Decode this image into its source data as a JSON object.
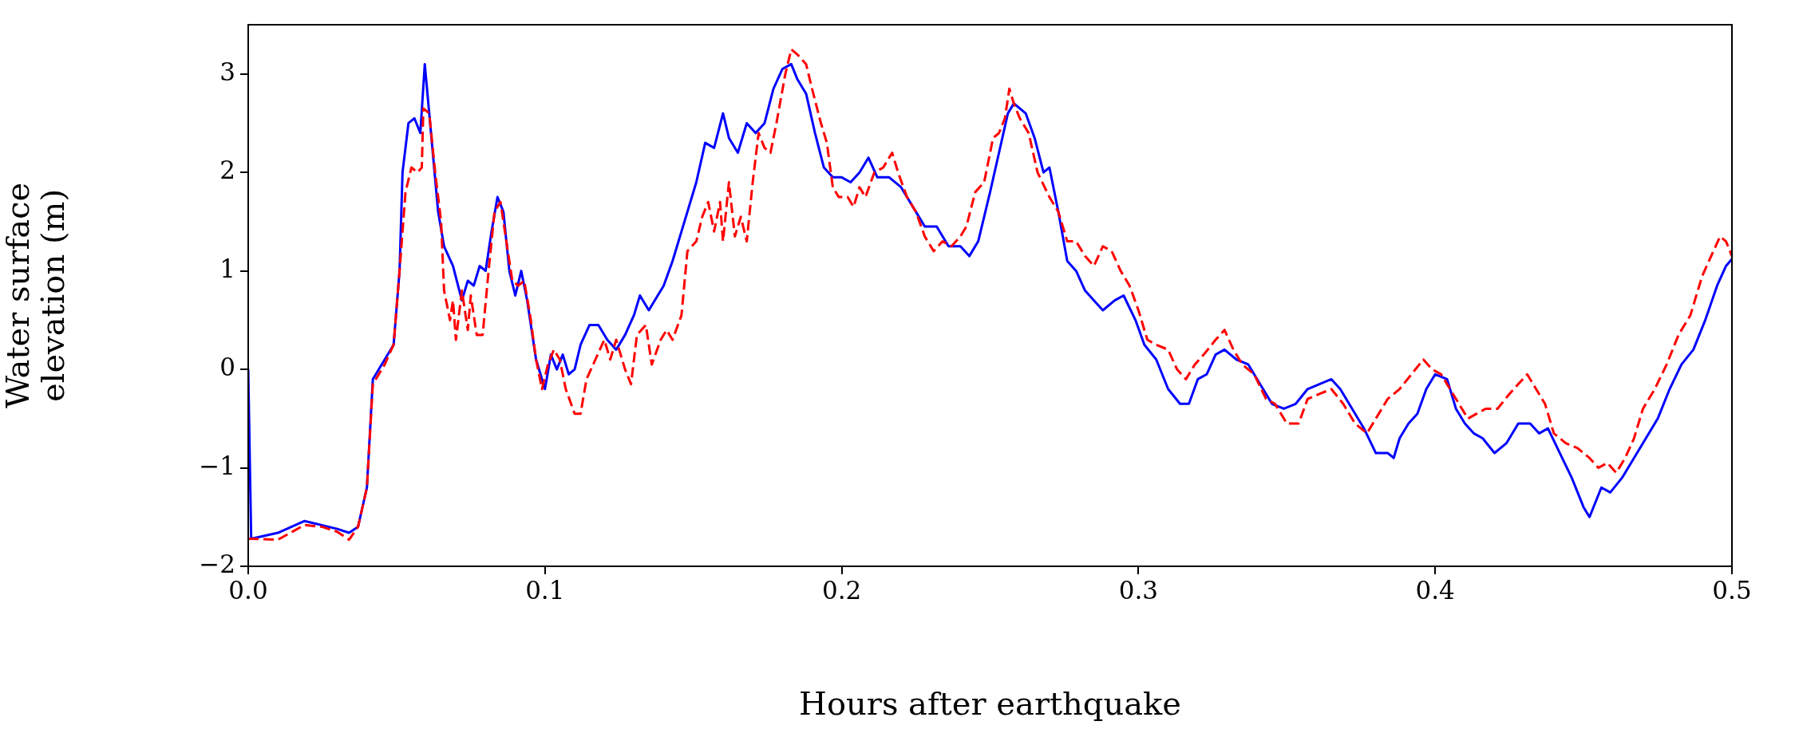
{
  "chart_data": {
    "type": "line",
    "xlabel": "Hours after earthquake",
    "ylabel": "Water surface elevation (m)",
    "xlim": [
      0,
      0.5
    ],
    "ylim": [
      -2,
      3.5
    ],
    "xticks": [
      {
        "value": 0,
        "label": "0.0"
      },
      0.1,
      0.2,
      0.3,
      0.4,
      0.5
    ],
    "yticks": [
      {
        "value": -2,
        "label": "−2"
      },
      {
        "value": -1,
        "label": "−1"
      },
      0,
      1,
      2,
      3
    ],
    "series": [
      {
        "color": "#0000ff",
        "line_style": "solid",
        "x": [
          0,
          0.001,
          0.01,
          0.019,
          0.03,
          0.034,
          0.037,
          0.04,
          0.042,
          0.046,
          0.049,
          0.051,
          0.052,
          0.054,
          0.056,
          0.058,
          0.0595,
          0.061,
          0.064,
          0.066,
          0.069,
          0.072,
          0.074,
          0.076,
          0.078,
          0.08,
          0.082,
          0.084,
          0.086,
          0.088,
          0.09,
          0.092,
          0.094,
          0.097,
          0.1,
          0.102,
          0.104,
          0.106,
          0.108,
          0.11,
          0.112,
          0.115,
          0.118,
          0.121,
          0.124,
          0.127,
          0.13,
          0.132,
          0.135,
          0.138,
          0.14,
          0.143,
          0.147,
          0.151,
          0.154,
          0.157,
          0.16,
          0.162,
          0.165,
          0.168,
          0.171,
          0.174,
          0.177,
          0.18,
          0.183,
          0.185,
          0.188,
          0.191,
          0.194,
          0.197,
          0.2,
          0.203,
          0.206,
          0.209,
          0.212,
          0.216,
          0.22,
          0.224,
          0.228,
          0.232,
          0.236,
          0.24,
          0.243,
          0.246,
          0.25,
          0.253,
          0.256,
          0.258,
          0.262,
          0.265,
          0.268,
          0.27,
          0.273,
          0.276,
          0.279,
          0.282,
          0.285,
          0.288,
          0.292,
          0.295,
          0.299,
          0.302,
          0.306,
          0.31,
          0.314,
          0.317,
          0.32,
          0.323,
          0.326,
          0.329,
          0.333,
          0.337,
          0.34,
          0.345,
          0.349,
          0.353,
          0.357,
          0.361,
          0.365,
          0.368,
          0.372,
          0.376,
          0.38,
          0.384,
          0.386,
          0.388,
          0.391,
          0.394,
          0.397,
          0.4,
          0.404,
          0.407,
          0.41,
          0.413,
          0.416,
          0.42,
          0.424,
          0.428,
          0.432,
          0.435,
          0.438,
          0.442,
          0.446,
          0.45,
          0.452,
          0.456,
          0.459,
          0.463,
          0.467,
          0.471,
          0.475,
          0.479,
          0.483,
          0.487,
          0.491,
          0.495,
          0.498,
          0.5
        ],
        "values": [
          0,
          -1.72,
          -1.66,
          -1.54,
          -1.62,
          -1.66,
          -1.6,
          -1.2,
          -0.1,
          0.1,
          0.25,
          1.0,
          2.0,
          2.5,
          2.55,
          2.4,
          3.1,
          2.6,
          1.6,
          1.25,
          1.05,
          0.7,
          0.9,
          0.85,
          1.05,
          1.0,
          1.4,
          1.75,
          1.6,
          1.0,
          0.75,
          1.0,
          0.7,
          0.1,
          -0.2,
          0.15,
          0.0,
          0.15,
          -0.05,
          0.0,
          0.25,
          0.45,
          0.45,
          0.3,
          0.2,
          0.35,
          0.55,
          0.75,
          0.6,
          0.75,
          0.85,
          1.1,
          1.5,
          1.9,
          2.3,
          2.25,
          2.6,
          2.35,
          2.2,
          2.5,
          2.4,
          2.5,
          2.85,
          3.05,
          3.1,
          2.95,
          2.8,
          2.4,
          2.05,
          1.95,
          1.95,
          1.9,
          2.0,
          2.15,
          1.95,
          1.95,
          1.85,
          1.65,
          1.45,
          1.45,
          1.25,
          1.25,
          1.15,
          1.3,
          1.8,
          2.2,
          2.6,
          2.7,
          2.6,
          2.35,
          2.0,
          2.05,
          1.6,
          1.1,
          1.0,
          0.8,
          0.7,
          0.6,
          0.7,
          0.75,
          0.5,
          0.25,
          0.1,
          -0.2,
          -0.35,
          -0.35,
          -0.1,
          -0.05,
          0.15,
          0.2,
          0.1,
          0.05,
          -0.1,
          -0.35,
          -0.4,
          -0.35,
          -0.2,
          -0.15,
          -0.1,
          -0.2,
          -0.4,
          -0.6,
          -0.85,
          -0.85,
          -0.9,
          -0.7,
          -0.55,
          -0.45,
          -0.2,
          -0.05,
          -0.1,
          -0.4,
          -0.55,
          -0.65,
          -0.7,
          -0.85,
          -0.75,
          -0.55,
          -0.55,
          -0.65,
          -0.6,
          -0.85,
          -1.1,
          -1.4,
          -1.5,
          -1.2,
          -1.25,
          -1.1,
          -0.9,
          -0.7,
          -0.5,
          -0.2,
          0.05,
          0.2,
          0.5,
          0.85,
          1.05,
          1.12
        ]
      },
      {
        "color": "#ff0000",
        "line_style": "dashed",
        "x": [
          0,
          0.01,
          0.019,
          0.025,
          0.03,
          0.034,
          0.037,
          0.04,
          0.042,
          0.046,
          0.049,
          0.051,
          0.053,
          0.055,
          0.057,
          0.0585,
          0.059,
          0.061,
          0.063,
          0.065,
          0.066,
          0.068,
          0.069,
          0.07,
          0.072,
          0.074,
          0.075,
          0.077,
          0.079,
          0.081,
          0.083,
          0.085,
          0.087,
          0.089,
          0.091,
          0.093,
          0.095,
          0.097,
          0.099,
          0.101,
          0.103,
          0.105,
          0.107,
          0.11,
          0.112,
          0.114,
          0.117,
          0.12,
          0.122,
          0.124,
          0.127,
          0.129,
          0.131,
          0.134,
          0.136,
          0.139,
          0.141,
          0.143,
          0.146,
          0.148,
          0.151,
          0.153,
          0.155,
          0.157,
          0.159,
          0.16,
          0.162,
          0.164,
          0.166,
          0.168,
          0.17,
          0.172,
          0.174,
          0.176,
          0.178,
          0.181,
          0.183,
          0.185,
          0.188,
          0.19,
          0.193,
          0.195,
          0.197,
          0.199,
          0.202,
          0.204,
          0.206,
          0.208,
          0.211,
          0.214,
          0.217,
          0.219,
          0.222,
          0.225,
          0.228,
          0.231,
          0.234,
          0.237,
          0.24,
          0.242,
          0.245,
          0.248,
          0.251,
          0.253,
          0.255,
          0.2565,
          0.258,
          0.26,
          0.263,
          0.266,
          0.27,
          0.273,
          0.276,
          0.279,
          0.282,
          0.285,
          0.288,
          0.291,
          0.294,
          0.297,
          0.3,
          0.303,
          0.306,
          0.31,
          0.313,
          0.316,
          0.319,
          0.322,
          0.326,
          0.329,
          0.332,
          0.335,
          0.339,
          0.343,
          0.346,
          0.35,
          0.354,
          0.357,
          0.361,
          0.365,
          0.369,
          0.373,
          0.377,
          0.38,
          0.384,
          0.388,
          0.392,
          0.396,
          0.399,
          0.402,
          0.405,
          0.408,
          0.411,
          0.414,
          0.417,
          0.421,
          0.425,
          0.428,
          0.431,
          0.434,
          0.437,
          0.44,
          0.444,
          0.448,
          0.452,
          0.455,
          0.458,
          0.461,
          0.464,
          0.467,
          0.47,
          0.474,
          0.478,
          0.482,
          0.486,
          0.49,
          0.493,
          0.496,
          0.498,
          0.5
        ],
        "values": [
          -1.72,
          -1.73,
          -1.58,
          -1.6,
          -1.65,
          -1.73,
          -1.6,
          -1.2,
          -0.15,
          0.05,
          0.25,
          1.0,
          1.8,
          2.05,
          2.0,
          2.05,
          2.65,
          2.6,
          2.0,
          1.5,
          0.8,
          0.5,
          0.7,
          0.3,
          0.8,
          0.4,
          0.75,
          0.35,
          0.35,
          1.0,
          1.6,
          1.7,
          1.3,
          0.9,
          0.85,
          0.9,
          0.55,
          0.1,
          -0.2,
          0.05,
          0.2,
          0.1,
          -0.2,
          -0.45,
          -0.45,
          -0.1,
          0.1,
          0.3,
          0.1,
          0.3,
          0.0,
          -0.15,
          0.35,
          0.45,
          0.05,
          0.3,
          0.4,
          0.3,
          0.55,
          1.2,
          1.3,
          1.55,
          1.7,
          1.4,
          1.7,
          1.3,
          1.9,
          1.35,
          1.55,
          1.3,
          1.9,
          2.4,
          2.25,
          2.2,
          2.5,
          3.0,
          3.25,
          3.2,
          3.1,
          2.85,
          2.5,
          2.3,
          1.85,
          1.75,
          1.75,
          1.65,
          1.85,
          1.75,
          2.0,
          2.05,
          2.2,
          2.0,
          1.75,
          1.6,
          1.35,
          1.2,
          1.3,
          1.25,
          1.35,
          1.45,
          1.8,
          1.9,
          2.35,
          2.4,
          2.55,
          2.85,
          2.7,
          2.55,
          2.4,
          2.0,
          1.75,
          1.6,
          1.3,
          1.3,
          1.15,
          1.05,
          1.25,
          1.2,
          1.0,
          0.85,
          0.6,
          0.3,
          0.25,
          0.2,
          0.0,
          -0.1,
          0.05,
          0.15,
          0.3,
          0.4,
          0.2,
          0.05,
          -0.05,
          -0.3,
          -0.35,
          -0.55,
          -0.55,
          -0.3,
          -0.25,
          -0.2,
          -0.35,
          -0.55,
          -0.65,
          -0.5,
          -0.3,
          -0.2,
          -0.05,
          0.1,
          0.0,
          -0.05,
          -0.2,
          -0.35,
          -0.5,
          -0.45,
          -0.4,
          -0.4,
          -0.25,
          -0.15,
          -0.05,
          -0.2,
          -0.35,
          -0.65,
          -0.75,
          -0.8,
          -0.9,
          -1.0,
          -0.95,
          -1.05,
          -0.9,
          -0.7,
          -0.4,
          -0.2,
          0.05,
          0.35,
          0.55,
          0.95,
          1.15,
          1.35,
          1.3,
          1.15
        ]
      }
    ]
  }
}
